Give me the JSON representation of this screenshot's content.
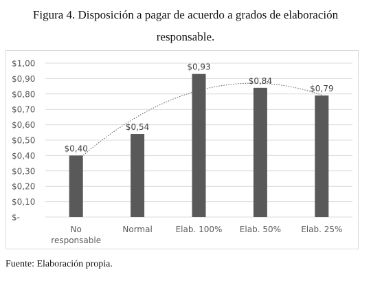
{
  "caption": {
    "line1": "Figura 4. Disposición a pagar de acuerdo a grados de elaboración",
    "line2": "responsable."
  },
  "source": "Fuente: Elaboración propia.",
  "chart_data": {
    "type": "bar",
    "categories": [
      [
        "No",
        "responsable"
      ],
      [
        "Normal"
      ],
      [
        "Elab. 100%"
      ],
      [
        "Elab. 50%"
      ],
      [
        "Elab. 25%"
      ]
    ],
    "values": [
      0.4,
      0.54,
      0.93,
      0.84,
      0.79
    ],
    "data_labels": [
      "$0,40",
      "$0,54",
      "$0,93",
      "$0,84",
      "$0,79"
    ],
    "y_ticks": [
      {
        "value": 0,
        "label": "$-"
      },
      {
        "value": 0.1,
        "label": "$0,10"
      },
      {
        "value": 0.2,
        "label": "$0,20"
      },
      {
        "value": 0.3,
        "label": "$0,30"
      },
      {
        "value": 0.4,
        "label": "$0,40"
      },
      {
        "value": 0.5,
        "label": "$0,50"
      },
      {
        "value": 0.6,
        "label": "$0,60"
      },
      {
        "value": 0.7,
        "label": "$0,70"
      },
      {
        "value": 0.8,
        "label": "$0,80"
      },
      {
        "value": 0.9,
        "label": "$0,90"
      },
      {
        "value": 1.0,
        "label": "$1,00"
      }
    ],
    "ylim": [
      0,
      1.0
    ],
    "grid": true,
    "trendline": "polynomial, dotted",
    "bar_color": "#595959",
    "grid_color": "#d9d9d9",
    "trend_color": "#595959"
  }
}
